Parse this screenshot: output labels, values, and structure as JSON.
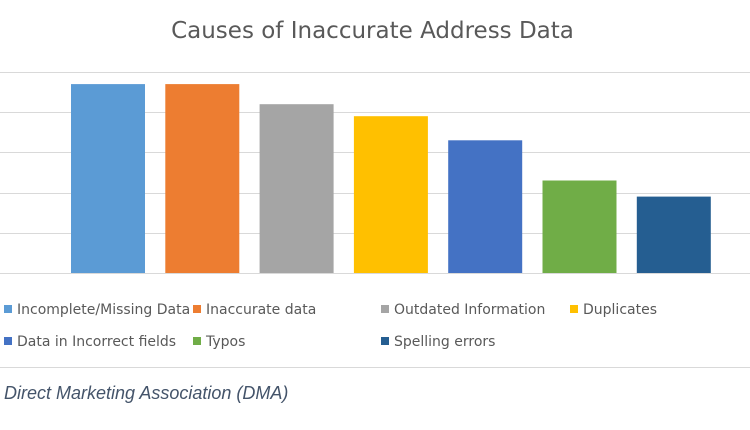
{
  "chart_data": {
    "type": "bar",
    "title": "Causes of Inaccurate Address Data",
    "categories": [
      "Incomplete/Missing Data",
      "Inaccurate data",
      "Outdated Information",
      "Duplicates",
      "Data in Incorrect fields",
      "Typos",
      "Spelling errors"
    ],
    "values": [
      47,
      47,
      42,
      39,
      33,
      23,
      19
    ],
    "colors": [
      "#5b9bd5",
      "#ed7d31",
      "#a5a5a5",
      "#ffc000",
      "#4472c4",
      "#70ad47",
      "#255e91"
    ],
    "ylim": [
      0,
      50
    ],
    "y_gridlines": [
      0,
      10,
      20,
      30,
      40,
      50
    ],
    "grid": true,
    "legend_position": "bottom",
    "xlabel": "",
    "ylabel": ""
  },
  "source": "Direct Marketing Association (DMA)"
}
